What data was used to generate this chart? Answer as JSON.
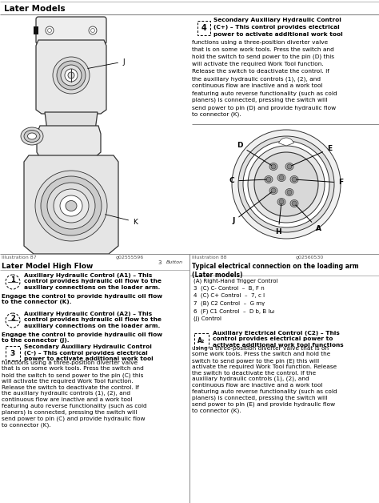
{
  "title": "Later Models",
  "bg_color": "#ffffff",
  "top_right_text": "Secondary Auxiliary Hydraulic Control\n(C+) – This control provides electrical\npower to activate additional work tool\nfunctions using a three-position diverter valve\nthat is on some work tools. Press the switch and\nhold the switch to send power to the pin (D) this\nwill activate the required Work Tool function.\nRelease the switch to deactivate the control. If\nthe auxiliary hydraulic controls (1), (2), and\ncontinuous flow are inactive and a work tool\nfeaturing auto reverse functionality (such as cold\nplaners) is connected, pressing the switch will\nsend power to pin (D) and provide hydraulic flow\nto connector (K).",
  "illus87_label": "Illustration 87",
  "illus87_id": "g02555596",
  "illus87_title": "Later Model High Flow",
  "illus88_label": "Illustration 88",
  "illus88_id": "g02560530",
  "illus88_title": "Typical electrical connection on the loading arm\n(Later models)",
  "illus88_list": [
    "(A) Right-Hand Trigger Control",
    "3  (C) C- Control  –  B, F n",
    "4  (C) C+ Control  –  7, c l",
    "7  (B) C2 Control  –  G mγ",
    "6  (F) C1 Control  –  D b, B lω",
    "(J) Control"
  ],
  "ctrl1_bold": "Auxiliary Hydraulic Control (A1) – This\ncontrol provides hydraulic oil flow to the\nauxiliary connections on the loader arm.",
  "ctrl1_normal": "Engage the control to provide hydraulic oil flow\nto the connector (K).",
  "ctrl2_bold": "Auxiliary Hydraulic Control (A2) – This\ncontrol provides hydraulic oil flow to the\nauxiliary connections on the loader arm.",
  "ctrl2_normal": "Engage the control to provide hydraulic oil flow\nto the connector (J).",
  "ctrl3_bold": "Secondary Auxiliary Hydraulic Control\n(C-) – This control provides electrical\npower to activate additional work tool",
  "ctrl3_normal": "functions using a three-position diverter valve\nthat is on some work tools. Press the switch and\nhold the switch to send power to the pin (C) this\nwill activate the required Work Tool function.\nRelease the switch to deactivate the control. If\nthe auxiliary hydraulic controls (1), (2), and\ncontinuous flow are inactive and a work tool\nfeaturing auto reverse functionality (such as cold\nplaners) is connected, pressing the switch will\nsend power to pin (C) and provide hydraulic flow\nto connector (K).",
  "ctrlC2_bold": "Auxiliary Electrical Control (C2) – This\ncontrol provides electrical power to\nactivate additional work tool functions",
  "ctrlC2_normal": "using a three-position diverter valve that is on\nsome work tools. Press the switch and hold the\nswitch to send power to the pin (E) this will\nactivate the required Work Tool function. Release\nthe switch to deactivate the control. If the\nauxiliary hydraulic controls (1), (2), and\ncontinuous flow are inactive and a work tool\nfeaturing auto reverse functionality (such as cold\nplaners) is connected, pressing the switch will\nsend power to pin (E) and provide hydraulic flow\nto connector (K)."
}
